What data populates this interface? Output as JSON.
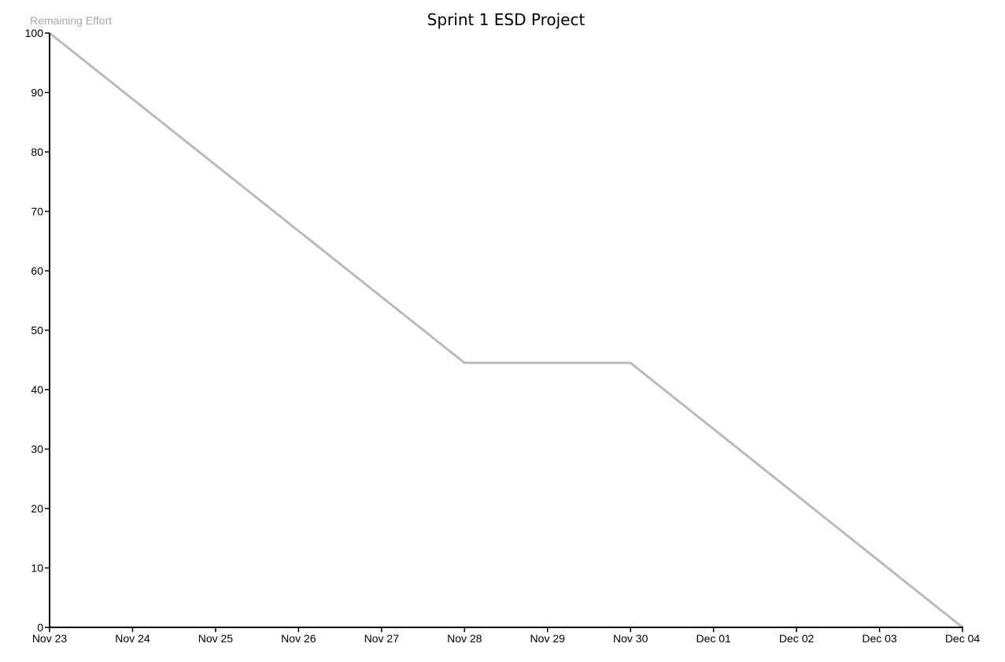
{
  "chart_data": {
    "type": "line",
    "title": "Sprint 1 ESD Project",
    "xlabel": "",
    "ylabel": "Remaining Effort",
    "ylim": [
      0,
      100
    ],
    "yticks": [
      0,
      10,
      20,
      30,
      40,
      50,
      60,
      70,
      80,
      90,
      100
    ],
    "categories": [
      "Nov 23",
      "Nov 24",
      "Nov 25",
      "Nov 26",
      "Nov 27",
      "Nov 28",
      "Nov 29",
      "Nov 30",
      "Dec 01",
      "Dec 02",
      "Dec 03",
      "Dec 04"
    ],
    "grid": false,
    "legend": "none",
    "series": [
      {
        "color": "#bbbbbb",
        "points": [
          {
            "x": "Nov 23",
            "y": 100
          },
          {
            "x": "Nov 28",
            "y": 44.5
          },
          {
            "x": "Nov 30",
            "y": 44.5
          },
          {
            "x": "Dec 04",
            "y": 0
          }
        ]
      }
    ]
  }
}
